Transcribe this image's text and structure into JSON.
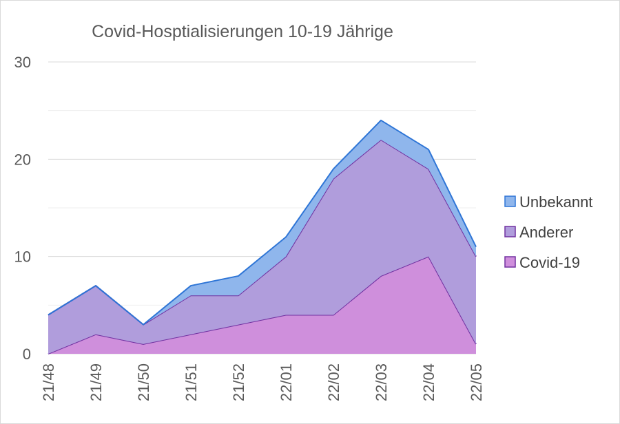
{
  "chart_data": {
    "type": "area",
    "stacked": true,
    "title": "Covid-Hosptialisierungen 10-19 Jährige",
    "xlabel": "",
    "ylabel": "",
    "categories": [
      "21/48",
      "21/49",
      "21/50",
      "21/51",
      "21/52",
      "22/01",
      "22/02",
      "22/03",
      "22/04",
      "22/05"
    ],
    "ylim": [
      0,
      30
    ],
    "yticks": [
      0,
      10,
      20,
      30
    ],
    "grid": true,
    "legend": "right",
    "series": [
      {
        "name": "Covid-19",
        "values": [
          0,
          2,
          1,
          2,
          3,
          4,
          4,
          8,
          10,
          1
        ],
        "fill": "#cf8fdc",
        "stroke": "#7030a0"
      },
      {
        "name": "Anderer",
        "values": [
          4,
          5,
          2,
          4,
          3,
          6,
          14,
          14,
          9,
          9
        ],
        "fill": "#b09ddc",
        "stroke": "#7030a0"
      },
      {
        "name": "Unbekannt",
        "values": [
          0,
          0,
          0,
          1,
          2,
          2,
          1,
          2,
          2,
          1
        ],
        "fill": "#8fb6ec",
        "stroke": "#2e75d6"
      }
    ],
    "legend_order": [
      "Unbekannt",
      "Anderer",
      "Covid-19"
    ]
  }
}
